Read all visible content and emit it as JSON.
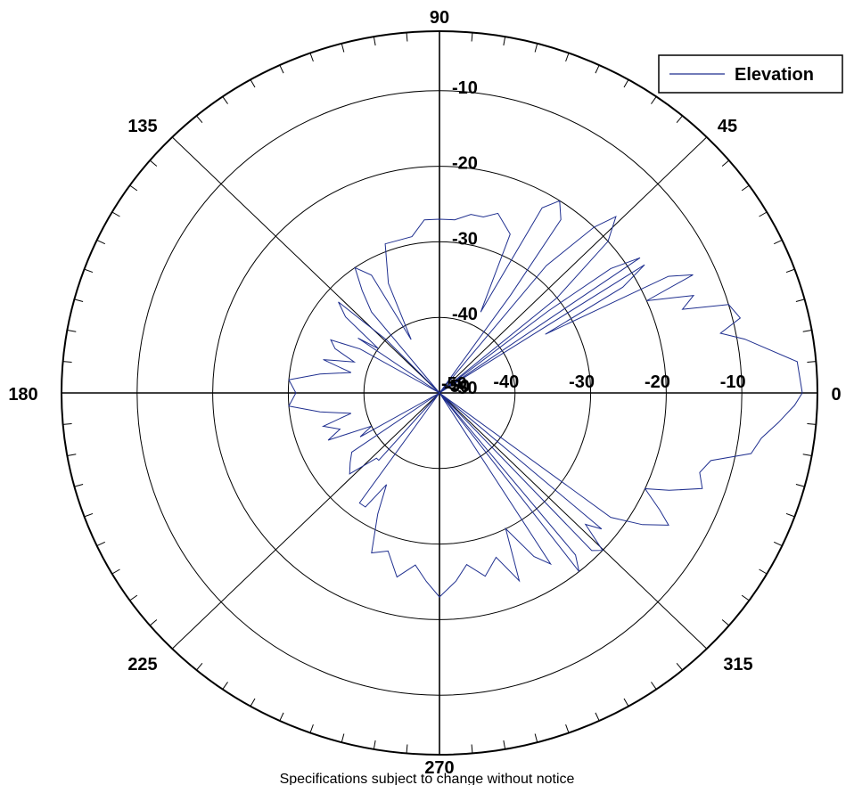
{
  "chart_data": {
    "type": "polar",
    "series": [
      {
        "name": "Elevation",
        "color": "#1f2f8f",
        "points": [
          [
            0,
            -2
          ],
          [
            5,
            -2.5
          ],
          [
            10,
            -9
          ],
          [
            12,
            -12
          ],
          [
            14,
            -9
          ],
          [
            17,
            -10
          ],
          [
            19,
            -16
          ],
          [
            21,
            -14
          ],
          [
            24,
            -20
          ],
          [
            25,
            -13
          ],
          [
            27,
            -16
          ],
          [
            29,
            -34
          ],
          [
            30,
            -22
          ],
          [
            32,
            -18
          ],
          [
            33,
            -50
          ],
          [
            34,
            -18
          ],
          [
            36,
            -22
          ],
          [
            37,
            -32
          ],
          [
            38,
            -50
          ],
          [
            39,
            -30
          ],
          [
            42,
            -20
          ],
          [
            45,
            -17
          ],
          [
            47,
            -20
          ],
          [
            50,
            -28
          ],
          [
            52,
            -50
          ],
          [
            54,
            -34
          ],
          [
            55,
            -22
          ],
          [
            58,
            -20
          ],
          [
            61,
            -22
          ],
          [
            63,
            -38
          ],
          [
            66,
            -27
          ],
          [
            72,
            -25
          ],
          [
            76,
            -26
          ],
          [
            80,
            -26
          ],
          [
            85,
            -27
          ],
          [
            90,
            -27
          ],
          [
            95,
            -27
          ],
          [
            100,
            -29
          ],
          [
            110,
            -29
          ],
          [
            115,
            -34
          ],
          [
            118,
            -42
          ],
          [
            120,
            -32
          ],
          [
            124,
            -30
          ],
          [
            127,
            -33
          ],
          [
            130,
            -36
          ],
          [
            133,
            -50
          ],
          [
            135,
            -40
          ],
          [
            138,
            -32
          ],
          [
            141,
            -34
          ],
          [
            144,
            -40
          ],
          [
            146,
            -37
          ],
          [
            149,
            -50
          ],
          [
            151,
            -38
          ],
          [
            154,
            -34
          ],
          [
            157,
            -35
          ],
          [
            160,
            -38
          ],
          [
            164,
            -34
          ],
          [
            167,
            -38
          ],
          [
            171,
            -34
          ],
          [
            175,
            -30
          ],
          [
            180,
            -31
          ],
          [
            185,
            -30
          ],
          [
            189,
            -34
          ],
          [
            193,
            -38
          ],
          [
            196,
            -34
          ],
          [
            200,
            -36
          ],
          [
            203,
            -34
          ],
          [
            206,
            -40
          ],
          [
            209,
            -38
          ],
          [
            211,
            -50
          ],
          [
            214,
            -36
          ],
          [
            218,
            -35
          ],
          [
            222,
            -34
          ],
          [
            226,
            -38
          ],
          [
            228,
            -38
          ],
          [
            231,
            -50
          ],
          [
            234,
            -32
          ],
          [
            237,
            -32
          ],
          [
            240,
            -36
          ],
          [
            243,
            -32
          ],
          [
            247,
            -27
          ],
          [
            252,
            -28
          ],
          [
            257,
            -25
          ],
          [
            262,
            -27
          ],
          [
            266,
            -25
          ],
          [
            270,
            -23
          ],
          [
            275,
            -25
          ],
          [
            279,
            -27
          ],
          [
            284,
            -25
          ],
          [
            289,
            -27
          ],
          [
            293,
            -23
          ],
          [
            296,
            -30
          ],
          [
            300,
            -25
          ],
          [
            303,
            -23
          ],
          [
            306,
            -50
          ],
          [
            308,
            -20
          ],
          [
            310,
            -22
          ],
          [
            312,
            -50
          ],
          [
            314,
            -21
          ],
          [
            316,
            -20
          ],
          [
            318,
            -24
          ],
          [
            320,
            -22
          ],
          [
            322,
            -50
          ],
          [
            324,
            -22
          ],
          [
            327,
            -18
          ],
          [
            330,
            -15
          ],
          [
            332,
            -17
          ],
          [
            335,
            -20
          ],
          [
            337,
            -17
          ],
          [
            340,
            -13
          ],
          [
            343,
            -14
          ],
          [
            346,
            -13
          ],
          [
            349,
            -8
          ],
          [
            352,
            -7
          ],
          [
            355,
            -5
          ],
          [
            358,
            -3
          ],
          [
            360,
            -2
          ]
        ]
      }
    ],
    "angular_ticks": [
      "0",
      "45",
      "90",
      "135",
      "180",
      "225",
      "270",
      "315"
    ],
    "radial_ticks_vertical": [
      "-10",
      "-20",
      "-30",
      "-40",
      "-50"
    ],
    "radial_ticks_horizontal": [
      "-10",
      "-20",
      "-30",
      "-40",
      "-50"
    ],
    "radial_center_label": "-50",
    "rlim": [
      -50,
      0
    ],
    "legend": {
      "position": "top-right",
      "label": "Elevation"
    },
    "grid": true
  },
  "caption": "Specifications subject to change without notice"
}
